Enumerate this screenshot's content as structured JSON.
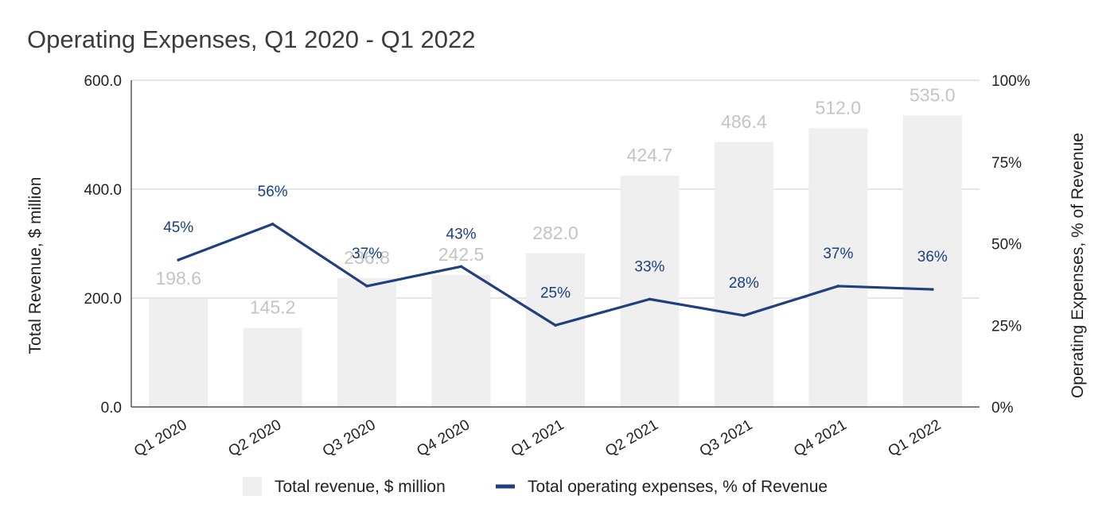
{
  "chart_data": {
    "type": "bar",
    "title": "Operating Expenses, Q1 2020 - Q1 2022",
    "categories": [
      "Q1 2020",
      "Q2 2020",
      "Q3 2020",
      "Q4 2020",
      "Q1 2021",
      "Q2 2021",
      "Q3 2021",
      "Q4 2021",
      "Q1 2022"
    ],
    "series": [
      {
        "name": "Total revenue, $ million",
        "type": "bar",
        "axis": "left",
        "values": [
          198.6,
          145.2,
          236.8,
          242.5,
          282.0,
          424.7,
          486.4,
          512.0,
          535.0
        ],
        "labels": [
          "198.6",
          "145.2",
          "236.8",
          "242.5",
          "282.0",
          "424.7",
          "486.4",
          "512.0",
          "535.0"
        ],
        "color": "#efefef"
      },
      {
        "name": "Total operating expenses, % of Revenue",
        "type": "line",
        "axis": "right",
        "values": [
          45,
          56,
          37,
          43,
          25,
          33,
          28,
          37,
          36
        ],
        "labels": [
          "45%",
          "56%",
          "37%",
          "43%",
          "25%",
          "33%",
          "28%",
          "37%",
          "36%"
        ],
        "color": "#1f3f7e"
      }
    ],
    "ylabel": "Total Revenue, $ million",
    "y2label": "Operating Expenses, % of Revenue",
    "ylim": [
      0,
      600
    ],
    "y2lim": [
      0,
      100
    ],
    "yticks": [
      "0.0",
      "200.0",
      "400.0",
      "600.0"
    ],
    "y2ticks": [
      "0%",
      "25%",
      "50%",
      "75%",
      "100%"
    ],
    "grid": true,
    "legend": "bottom"
  }
}
